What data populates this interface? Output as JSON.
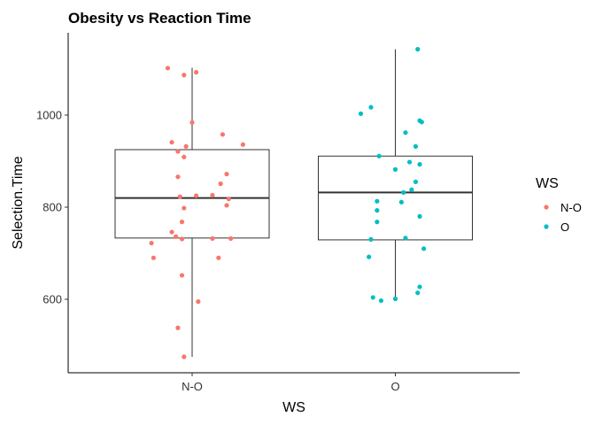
{
  "chart_data": {
    "type": "boxplot",
    "title": "Obesity vs Reaction Time",
    "xlabel": "WS",
    "ylabel": "Selection.Time",
    "categories": [
      "N-O",
      "O"
    ],
    "y_ticks": [
      600,
      800,
      1000
    ],
    "ylim": [
      450,
      1160
    ],
    "grid": false,
    "legend": {
      "title": "WS",
      "placement": "right",
      "entries": [
        {
          "label": "N-O",
          "color": "#F8766D"
        },
        {
          "label": "O",
          "color": "#00BFC4"
        }
      ]
    },
    "boxes": [
      {
        "category": "N-O",
        "min": 475,
        "q1": 733,
        "median": 820,
        "q3": 925,
        "max": 1103
      },
      {
        "category": "O",
        "min": 600,
        "q1": 729,
        "median": 832,
        "q3": 911,
        "max": 1143
      }
    ],
    "series": [
      {
        "name": "N-O",
        "color": "#F8766D",
        "points": [
          {
            "x": -0.12,
            "y": 1102
          },
          {
            "x": 0.02,
            "y": 1093
          },
          {
            "x": -0.04,
            "y": 1087
          },
          {
            "x": 0.15,
            "y": 958
          },
          {
            "x": 0.0,
            "y": 984
          },
          {
            "x": -0.1,
            "y": 941
          },
          {
            "x": -0.03,
            "y": 932
          },
          {
            "x": 0.25,
            "y": 936
          },
          {
            "x": -0.07,
            "y": 921
          },
          {
            "x": -0.04,
            "y": 909
          },
          {
            "x": 0.17,
            "y": 872
          },
          {
            "x": -0.07,
            "y": 866
          },
          {
            "x": 0.14,
            "y": 851
          },
          {
            "x": 0.02,
            "y": 825
          },
          {
            "x": -0.06,
            "y": 823
          },
          {
            "x": 0.1,
            "y": 826
          },
          {
            "x": 0.18,
            "y": 818
          },
          {
            "x": 0.17,
            "y": 804
          },
          {
            "x": -0.04,
            "y": 798
          },
          {
            "x": -0.05,
            "y": 768
          },
          {
            "x": -0.1,
            "y": 746
          },
          {
            "x": -0.08,
            "y": 736
          },
          {
            "x": -0.05,
            "y": 731
          },
          {
            "x": 0.1,
            "y": 732
          },
          {
            "x": 0.19,
            "y": 732
          },
          {
            "x": -0.2,
            "y": 722
          },
          {
            "x": -0.19,
            "y": 690
          },
          {
            "x": 0.13,
            "y": 690
          },
          {
            "x": -0.05,
            "y": 652
          },
          {
            "x": 0.03,
            "y": 595
          },
          {
            "x": -0.07,
            "y": 538
          },
          {
            "x": -0.04,
            "y": 475
          }
        ]
      },
      {
        "name": "O",
        "color": "#00BFC4",
        "points": [
          {
            "x": 0.11,
            "y": 1143
          },
          {
            "x": -0.12,
            "y": 1017
          },
          {
            "x": -0.17,
            "y": 1003
          },
          {
            "x": 0.12,
            "y": 988
          },
          {
            "x": 0.13,
            "y": 985
          },
          {
            "x": 0.05,
            "y": 962
          },
          {
            "x": 0.1,
            "y": 932
          },
          {
            "x": -0.08,
            "y": 911
          },
          {
            "x": 0.07,
            "y": 898
          },
          {
            "x": 0.12,
            "y": 893
          },
          {
            "x": 0.0,
            "y": 882
          },
          {
            "x": 0.1,
            "y": 855
          },
          {
            "x": 0.08,
            "y": 838
          },
          {
            "x": 0.04,
            "y": 832
          },
          {
            "x": -0.09,
            "y": 813
          },
          {
            "x": 0.03,
            "y": 811
          },
          {
            "x": -0.09,
            "y": 793
          },
          {
            "x": 0.12,
            "y": 780
          },
          {
            "x": -0.09,
            "y": 768
          },
          {
            "x": 0.05,
            "y": 733
          },
          {
            "x": -0.12,
            "y": 730
          },
          {
            "x": 0.14,
            "y": 710
          },
          {
            "x": -0.13,
            "y": 692
          },
          {
            "x": 0.12,
            "y": 627
          },
          {
            "x": 0.11,
            "y": 614
          },
          {
            "x": -0.11,
            "y": 604
          },
          {
            "x": 0.0,
            "y": 601
          },
          {
            "x": -0.07,
            "y": 597
          }
        ]
      }
    ]
  }
}
